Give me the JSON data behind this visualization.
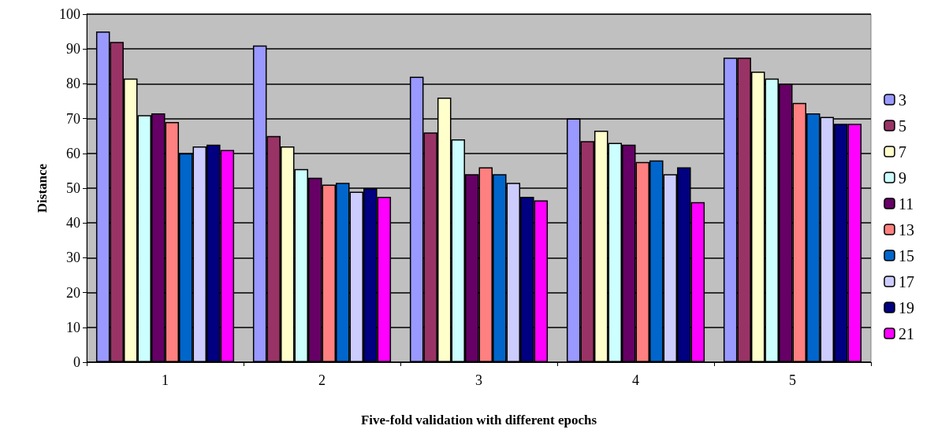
{
  "chart_data": {
    "type": "bar",
    "xlabel": "Five-fold validation with different epochs",
    "ylabel": "Distance",
    "categories": [
      "1",
      "2",
      "3",
      "4",
      "5"
    ],
    "series": [
      {
        "name": "3",
        "color": "#9999ff",
        "values": [
          95,
          91,
          82,
          70,
          87.5
        ]
      },
      {
        "name": "5",
        "color": "#993366",
        "values": [
          92,
          65,
          66,
          63.5,
          87.5
        ]
      },
      {
        "name": "7",
        "color": "#ffffcc",
        "values": [
          81.5,
          62,
          76,
          66.5,
          83.5
        ]
      },
      {
        "name": "9",
        "color": "#ccffff",
        "values": [
          71,
          55.5,
          64,
          63,
          81.5
        ]
      },
      {
        "name": "11",
        "color": "#660066",
        "values": [
          71.5,
          53,
          54,
          62.5,
          80
        ]
      },
      {
        "name": "13",
        "color": "#ff8080",
        "values": [
          69,
          51,
          56,
          57.5,
          74.5
        ]
      },
      {
        "name": "15",
        "color": "#0066cc",
        "values": [
          60,
          51.5,
          54,
          58,
          71.5
        ]
      },
      {
        "name": "17",
        "color": "#ccccff",
        "values": [
          62,
          49,
          51.5,
          54,
          70.5
        ]
      },
      {
        "name": "19",
        "color": "#000080",
        "values": [
          62.5,
          50,
          47.5,
          56,
          68.5
        ]
      },
      {
        "name": "21",
        "color": "#ff00ff",
        "values": [
          61,
          47.5,
          46.5,
          46,
          68.5
        ]
      }
    ],
    "ylim": [
      0,
      100
    ],
    "yticks": [
      0,
      10,
      20,
      30,
      40,
      50,
      60,
      70,
      80,
      90,
      100
    ],
    "grid": "y",
    "legend": "right"
  }
}
